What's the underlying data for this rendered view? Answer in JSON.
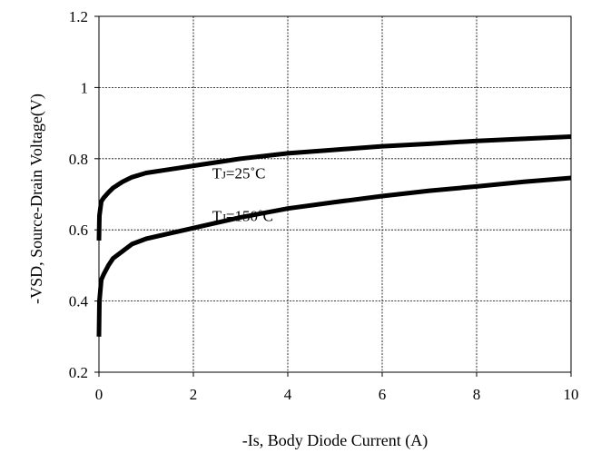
{
  "chart_data": {
    "type": "line",
    "xlabel": "-Is, Body Diode Current (A)",
    "ylabel": "-VSD, Source-Drain Voltage(V)",
    "xlim": [
      0,
      10
    ],
    "ylim": [
      0.2,
      1.2
    ],
    "x_ticks": [
      0,
      2,
      4,
      6,
      8,
      10
    ],
    "y_ticks": [
      0.2,
      0.4,
      0.6,
      0.8,
      1.0,
      1.2
    ],
    "x_tick_labels": [
      "0",
      "2",
      "4",
      "6",
      "8",
      "10"
    ],
    "y_tick_labels": [
      "0.2",
      "0.4",
      "0.6",
      "0.8",
      "1",
      "1.2"
    ],
    "grid": true,
    "series": [
      {
        "name": "TJ=25˚C",
        "color": "#000000",
        "points": [
          [
            0.0,
            0.57
          ],
          [
            0.01,
            0.64
          ],
          [
            0.05,
            0.68
          ],
          [
            0.1,
            0.69
          ],
          [
            0.2,
            0.705
          ],
          [
            0.3,
            0.718
          ],
          [
            0.5,
            0.735
          ],
          [
            0.7,
            0.748
          ],
          [
            1.0,
            0.76
          ],
          [
            1.5,
            0.77
          ],
          [
            2.0,
            0.78
          ],
          [
            3.0,
            0.8
          ],
          [
            4.0,
            0.815
          ],
          [
            5.0,
            0.825
          ],
          [
            6.0,
            0.835
          ],
          [
            7.0,
            0.842
          ],
          [
            8.0,
            0.85
          ],
          [
            9.0,
            0.856
          ],
          [
            10.0,
            0.862
          ]
        ]
      },
      {
        "name": "TJ=150˚C",
        "color": "#000000",
        "points": [
          [
            0.0,
            0.3
          ],
          [
            0.01,
            0.4
          ],
          [
            0.05,
            0.46
          ],
          [
            0.1,
            0.475
          ],
          [
            0.2,
            0.5
          ],
          [
            0.3,
            0.52
          ],
          [
            0.5,
            0.54
          ],
          [
            0.7,
            0.56
          ],
          [
            1.0,
            0.575
          ],
          [
            1.5,
            0.59
          ],
          [
            2.0,
            0.605
          ],
          [
            3.0,
            0.635
          ],
          [
            4.0,
            0.66
          ],
          [
            5.0,
            0.678
          ],
          [
            6.0,
            0.695
          ],
          [
            7.0,
            0.71
          ],
          [
            8.0,
            0.722
          ],
          [
            9.0,
            0.735
          ],
          [
            10.0,
            0.746
          ]
        ]
      }
    ],
    "annotations": [
      {
        "main": "T",
        "sub": "J",
        "rest": "=25˚C",
        "x": 2.4,
        "y": 0.745
      },
      {
        "main": "T",
        "sub": "J",
        "rest": "=150˚C",
        "x": 2.4,
        "y": 0.625
      }
    ]
  }
}
